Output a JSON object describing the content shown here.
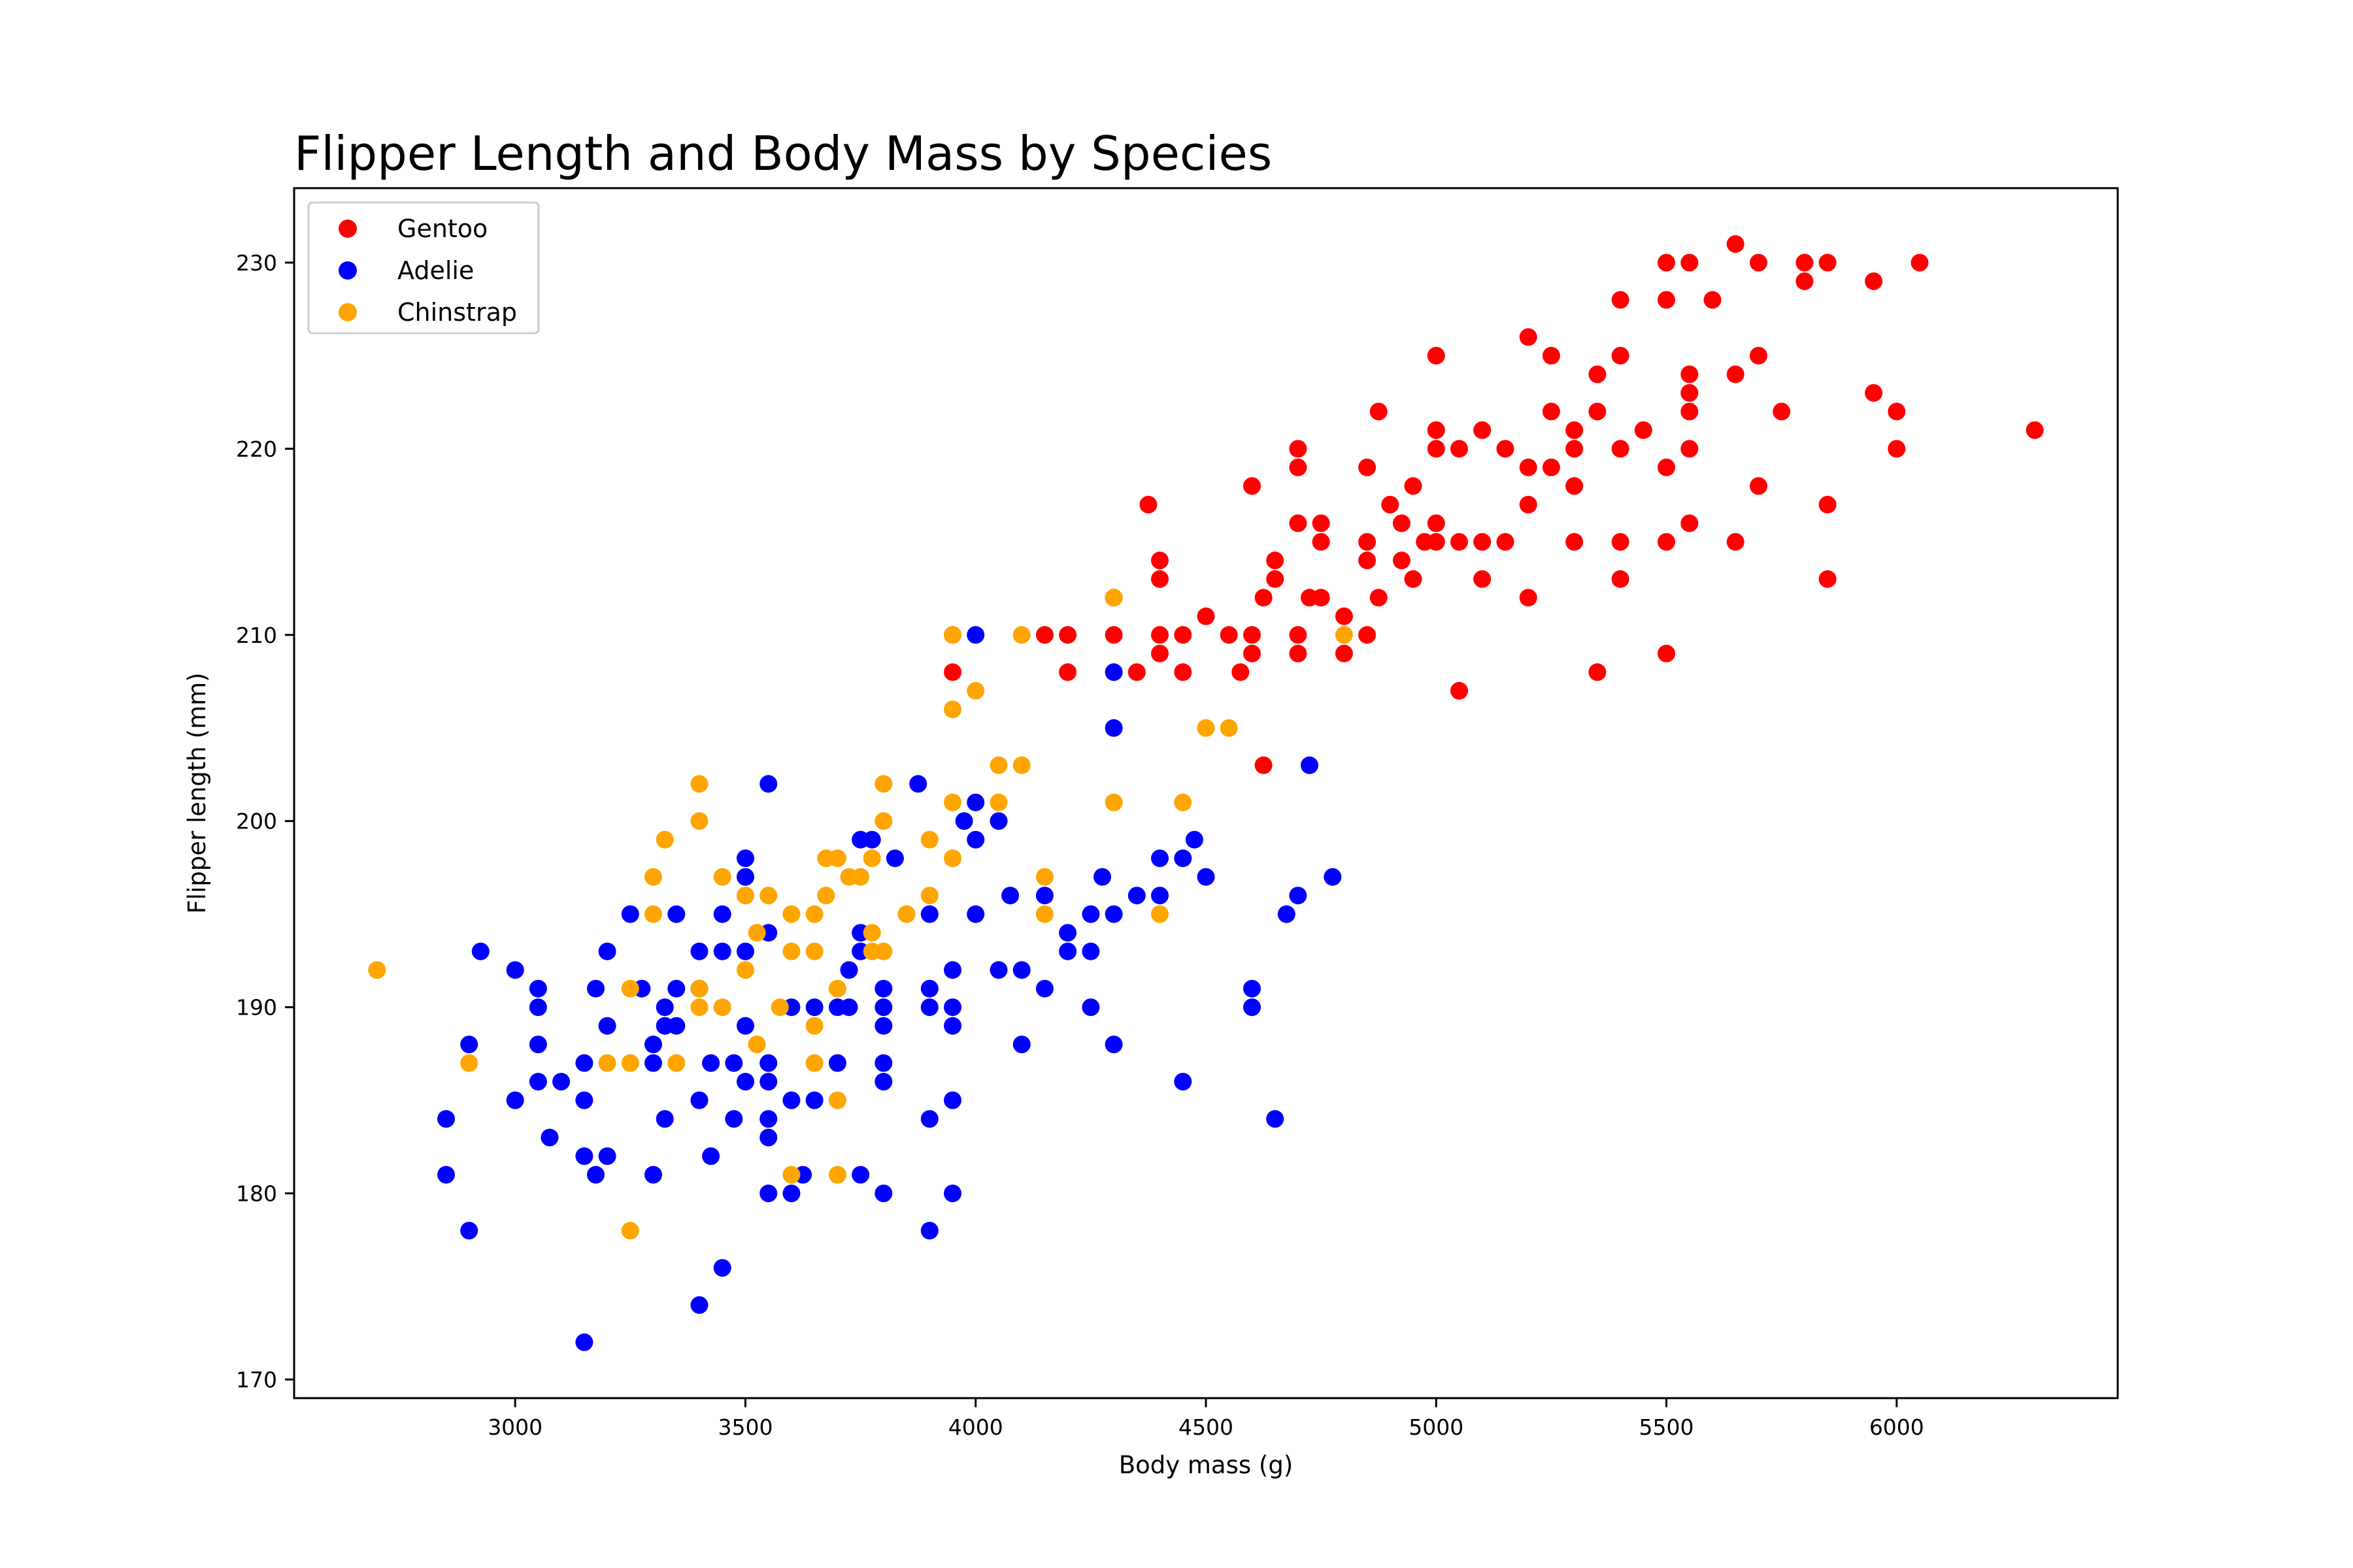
{
  "chart_data": {
    "type": "scatter",
    "title": "Flipper Length and Body Mass by Species",
    "xlabel": "Body mass (g)",
    "ylabel": "Flipper length (mm)",
    "xlim": [
      2520,
      6480
    ],
    "ylim": [
      169,
      234
    ],
    "xticks": [
      3000,
      3500,
      4000,
      4500,
      5000,
      5500,
      6000
    ],
    "yticks": [
      170,
      180,
      190,
      200,
      210,
      220,
      230
    ],
    "grid": false,
    "legend_position": "top-left",
    "series": [
      {
        "name": "Gentoo",
        "color": "#ff0000",
        "points": [
          [
            3950,
            208
          ],
          [
            3950,
            210
          ],
          [
            4150,
            210
          ],
          [
            4200,
            210
          ],
          [
            4200,
            208
          ],
          [
            4300,
            210
          ],
          [
            4300,
            212
          ],
          [
            4350,
            208
          ],
          [
            4375,
            217
          ],
          [
            4400,
            214
          ],
          [
            4400,
            213
          ],
          [
            4400,
            210
          ],
          [
            4400,
            209
          ],
          [
            4450,
            210
          ],
          [
            4450,
            208
          ],
          [
            4500,
            211
          ],
          [
            4550,
            210
          ],
          [
            4575,
            208
          ],
          [
            4600,
            218
          ],
          [
            4600,
            210
          ],
          [
            4600,
            209
          ],
          [
            4625,
            212
          ],
          [
            4625,
            203
          ],
          [
            4650,
            214
          ],
          [
            4650,
            213
          ],
          [
            4700,
            220
          ],
          [
            4700,
            219
          ],
          [
            4700,
            216
          ],
          [
            4700,
            210
          ],
          [
            4700,
            209
          ],
          [
            4725,
            212
          ],
          [
            4750,
            216
          ],
          [
            4750,
            215
          ],
          [
            4750,
            212
          ],
          [
            4800,
            211
          ],
          [
            4800,
            209
          ],
          [
            4850,
            219
          ],
          [
            4850,
            215
          ],
          [
            4850,
            214
          ],
          [
            4850,
            210
          ],
          [
            4875,
            222
          ],
          [
            4875,
            212
          ],
          [
            4900,
            217
          ],
          [
            4925,
            216
          ],
          [
            4925,
            214
          ],
          [
            4950,
            218
          ],
          [
            4950,
            213
          ],
          [
            4975,
            215
          ],
          [
            5000,
            225
          ],
          [
            5000,
            221
          ],
          [
            5000,
            220
          ],
          [
            5000,
            216
          ],
          [
            5000,
            215
          ],
          [
            5050,
            220
          ],
          [
            5050,
            215
          ],
          [
            5050,
            207
          ],
          [
            5100,
            221
          ],
          [
            5100,
            215
          ],
          [
            5100,
            213
          ],
          [
            5150,
            220
          ],
          [
            5150,
            215
          ],
          [
            5200,
            226
          ],
          [
            5200,
            219
          ],
          [
            5200,
            217
          ],
          [
            5200,
            212
          ],
          [
            5250,
            225
          ],
          [
            5250,
            222
          ],
          [
            5250,
            219
          ],
          [
            5300,
            221
          ],
          [
            5300,
            220
          ],
          [
            5300,
            218
          ],
          [
            5300,
            215
          ],
          [
            5350,
            224
          ],
          [
            5350,
            222
          ],
          [
            5350,
            208
          ],
          [
            5400,
            228
          ],
          [
            5400,
            225
          ],
          [
            5400,
            220
          ],
          [
            5400,
            215
          ],
          [
            5400,
            213
          ],
          [
            5450,
            221
          ],
          [
            5500,
            230
          ],
          [
            5500,
            228
          ],
          [
            5500,
            219
          ],
          [
            5500,
            215
          ],
          [
            5500,
            209
          ],
          [
            5550,
            230
          ],
          [
            5550,
            224
          ],
          [
            5550,
            223
          ],
          [
            5550,
            222
          ],
          [
            5550,
            220
          ],
          [
            5550,
            216
          ],
          [
            5600,
            228
          ],
          [
            5650,
            231
          ],
          [
            5650,
            224
          ],
          [
            5650,
            215
          ],
          [
            5700,
            230
          ],
          [
            5700,
            225
          ],
          [
            5700,
            218
          ],
          [
            5750,
            222
          ],
          [
            5800,
            230
          ],
          [
            5800,
            229
          ],
          [
            5850,
            230
          ],
          [
            5850,
            217
          ],
          [
            5850,
            213
          ],
          [
            5950,
            229
          ],
          [
            5950,
            223
          ],
          [
            6000,
            222
          ],
          [
            6000,
            220
          ],
          [
            6050,
            230
          ],
          [
            6300,
            221
          ]
        ]
      },
      {
        "name": "Adelie",
        "color": "#0000ff",
        "points": [
          [
            2850,
            184
          ],
          [
            2850,
            181
          ],
          [
            2900,
            188
          ],
          [
            2900,
            178
          ],
          [
            2925,
            193
          ],
          [
            3000,
            192
          ],
          [
            3000,
            185
          ],
          [
            3050,
            191
          ],
          [
            3050,
            190
          ],
          [
            3050,
            188
          ],
          [
            3050,
            186
          ],
          [
            3075,
            183
          ],
          [
            3100,
            186
          ],
          [
            3150,
            187
          ],
          [
            3150,
            185
          ],
          [
            3150,
            182
          ],
          [
            3150,
            172
          ],
          [
            3175,
            191
          ],
          [
            3175,
            181
          ],
          [
            3200,
            193
          ],
          [
            3200,
            189
          ],
          [
            3200,
            182
          ],
          [
            3250,
            195
          ],
          [
            3275,
            191
          ],
          [
            3300,
            188
          ],
          [
            3300,
            187
          ],
          [
            3300,
            181
          ],
          [
            3325,
            190
          ],
          [
            3325,
            189
          ],
          [
            3325,
            184
          ],
          [
            3350,
            195
          ],
          [
            3350,
            191
          ],
          [
            3350,
            189
          ],
          [
            3400,
            193
          ],
          [
            3400,
            191
          ],
          [
            3400,
            185
          ],
          [
            3400,
            174
          ],
          [
            3425,
            187
          ],
          [
            3425,
            182
          ],
          [
            3450,
            195
          ],
          [
            3450,
            193
          ],
          [
            3450,
            176
          ],
          [
            3475,
            187
          ],
          [
            3475,
            184
          ],
          [
            3500,
            198
          ],
          [
            3500,
            197
          ],
          [
            3500,
            193
          ],
          [
            3500,
            189
          ],
          [
            3500,
            186
          ],
          [
            3550,
            202
          ],
          [
            3550,
            194
          ],
          [
            3550,
            187
          ],
          [
            3550,
            186
          ],
          [
            3550,
            184
          ],
          [
            3550,
            183
          ],
          [
            3550,
            180
          ],
          [
            3600,
            190
          ],
          [
            3600,
            185
          ],
          [
            3600,
            180
          ],
          [
            3625,
            181
          ],
          [
            3650,
            190
          ],
          [
            3650,
            185
          ],
          [
            3700,
            190
          ],
          [
            3700,
            187
          ],
          [
            3725,
            192
          ],
          [
            3725,
            190
          ],
          [
            3750,
            194
          ],
          [
            3750,
            193
          ],
          [
            3750,
            181
          ],
          [
            3750,
            199
          ],
          [
            3775,
            199
          ],
          [
            3800,
            191
          ],
          [
            3800,
            190
          ],
          [
            3800,
            189
          ],
          [
            3800,
            187
          ],
          [
            3800,
            186
          ],
          [
            3800,
            180
          ],
          [
            3825,
            198
          ],
          [
            3875,
            202
          ],
          [
            3900,
            195
          ],
          [
            3900,
            191
          ],
          [
            3900,
            190
          ],
          [
            3900,
            184
          ],
          [
            3900,
            178
          ],
          [
            3950,
            192
          ],
          [
            3950,
            190
          ],
          [
            3950,
            189
          ],
          [
            3950,
            185
          ],
          [
            3950,
            180
          ],
          [
            3975,
            200
          ],
          [
            4000,
            210
          ],
          [
            4000,
            201
          ],
          [
            4000,
            199
          ],
          [
            4000,
            195
          ],
          [
            4050,
            200
          ],
          [
            4050,
            192
          ],
          [
            4075,
            196
          ],
          [
            4100,
            192
          ],
          [
            4100,
            188
          ],
          [
            4150,
            196
          ],
          [
            4150,
            191
          ],
          [
            4200,
            194
          ],
          [
            4200,
            193
          ],
          [
            4250,
            195
          ],
          [
            4250,
            193
          ],
          [
            4250,
            190
          ],
          [
            4275,
            197
          ],
          [
            4300,
            208
          ],
          [
            4300,
            205
          ],
          [
            4300,
            195
          ],
          [
            4300,
            188
          ],
          [
            4350,
            196
          ],
          [
            4400,
            198
          ],
          [
            4400,
            196
          ],
          [
            4450,
            198
          ],
          [
            4450,
            186
          ],
          [
            4475,
            199
          ],
          [
            4500,
            197
          ],
          [
            4600,
            191
          ],
          [
            4600,
            190
          ],
          [
            4650,
            184
          ],
          [
            4675,
            195
          ],
          [
            4700,
            196
          ],
          [
            4725,
            203
          ],
          [
            4775,
            197
          ]
        ]
      },
      {
        "name": "Chinstrap",
        "color": "#ffa500",
        "points": [
          [
            2700,
            192
          ],
          [
            2900,
            187
          ],
          [
            3200,
            187
          ],
          [
            3250,
            191
          ],
          [
            3250,
            187
          ],
          [
            3250,
            178
          ],
          [
            3300,
            197
          ],
          [
            3300,
            195
          ],
          [
            3325,
            199
          ],
          [
            3350,
            187
          ],
          [
            3400,
            202
          ],
          [
            3400,
            200
          ],
          [
            3400,
            191
          ],
          [
            3400,
            190
          ],
          [
            3450,
            197
          ],
          [
            3450,
            190
          ],
          [
            3500,
            196
          ],
          [
            3500,
            192
          ],
          [
            3525,
            188
          ],
          [
            3525,
            194
          ],
          [
            3550,
            196
          ],
          [
            3575,
            190
          ],
          [
            3600,
            195
          ],
          [
            3600,
            193
          ],
          [
            3600,
            181
          ],
          [
            3650,
            195
          ],
          [
            3650,
            193
          ],
          [
            3650,
            189
          ],
          [
            3650,
            187
          ],
          [
            3675,
            196
          ],
          [
            3675,
            198
          ],
          [
            3700,
            198
          ],
          [
            3700,
            191
          ],
          [
            3700,
            185
          ],
          [
            3700,
            181
          ],
          [
            3725,
            197
          ],
          [
            3750,
            197
          ],
          [
            3775,
            198
          ],
          [
            3775,
            194
          ],
          [
            3775,
            193
          ],
          [
            3800,
            202
          ],
          [
            3800,
            200
          ],
          [
            3800,
            193
          ],
          [
            3850,
            195
          ],
          [
            3900,
            199
          ],
          [
            3900,
            196
          ],
          [
            3950,
            210
          ],
          [
            3950,
            206
          ],
          [
            3950,
            201
          ],
          [
            3950,
            198
          ],
          [
            4000,
            207
          ],
          [
            4050,
            203
          ],
          [
            4050,
            201
          ],
          [
            4100,
            210
          ],
          [
            4100,
            203
          ],
          [
            4150,
            197
          ],
          [
            4150,
            195
          ],
          [
            4300,
            212
          ],
          [
            4300,
            201
          ],
          [
            4400,
            195
          ],
          [
            4450,
            201
          ],
          [
            4500,
            205
          ],
          [
            4550,
            205
          ],
          [
            4800,
            210
          ]
        ]
      }
    ]
  }
}
